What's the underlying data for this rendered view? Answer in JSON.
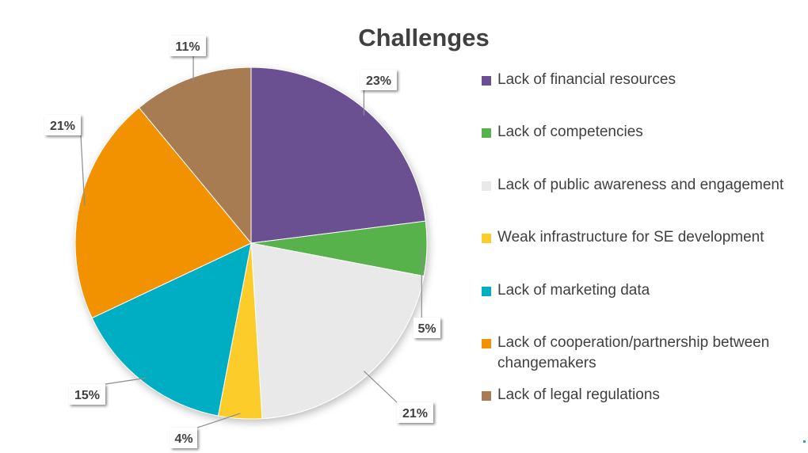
{
  "chart_data": {
    "type": "pie",
    "title": "Challenges",
    "slices": [
      {
        "label": "Lack of financial resources",
        "value": 23,
        "display": "23%",
        "color": "#6a4f91"
      },
      {
        "label": "Lack of competencies",
        "value": 5,
        "display": "5%",
        "color": "#58b24b"
      },
      {
        "label": "Lack of public awareness and engagement",
        "value": 21,
        "display": "21%",
        "color": "#e9e9e9"
      },
      {
        "label": "Weak infrastructure for SE development",
        "value": 4,
        "display": "4%",
        "color": "#fccd2a"
      },
      {
        "label": "Lack of marketing data",
        "value": 15,
        "display": "15%",
        "color": "#00aec4"
      },
      {
        "label": "Lack of cooperation/partnership between changemakers",
        "value": 21,
        "display": "21%",
        "color": "#f39200"
      },
      {
        "label": "Lack of legal regulations",
        "value": 11,
        "display": "11%",
        "color": "#a77b53"
      }
    ],
    "legend_position": "right",
    "start_angle": "12 o'clock, clockwise"
  }
}
